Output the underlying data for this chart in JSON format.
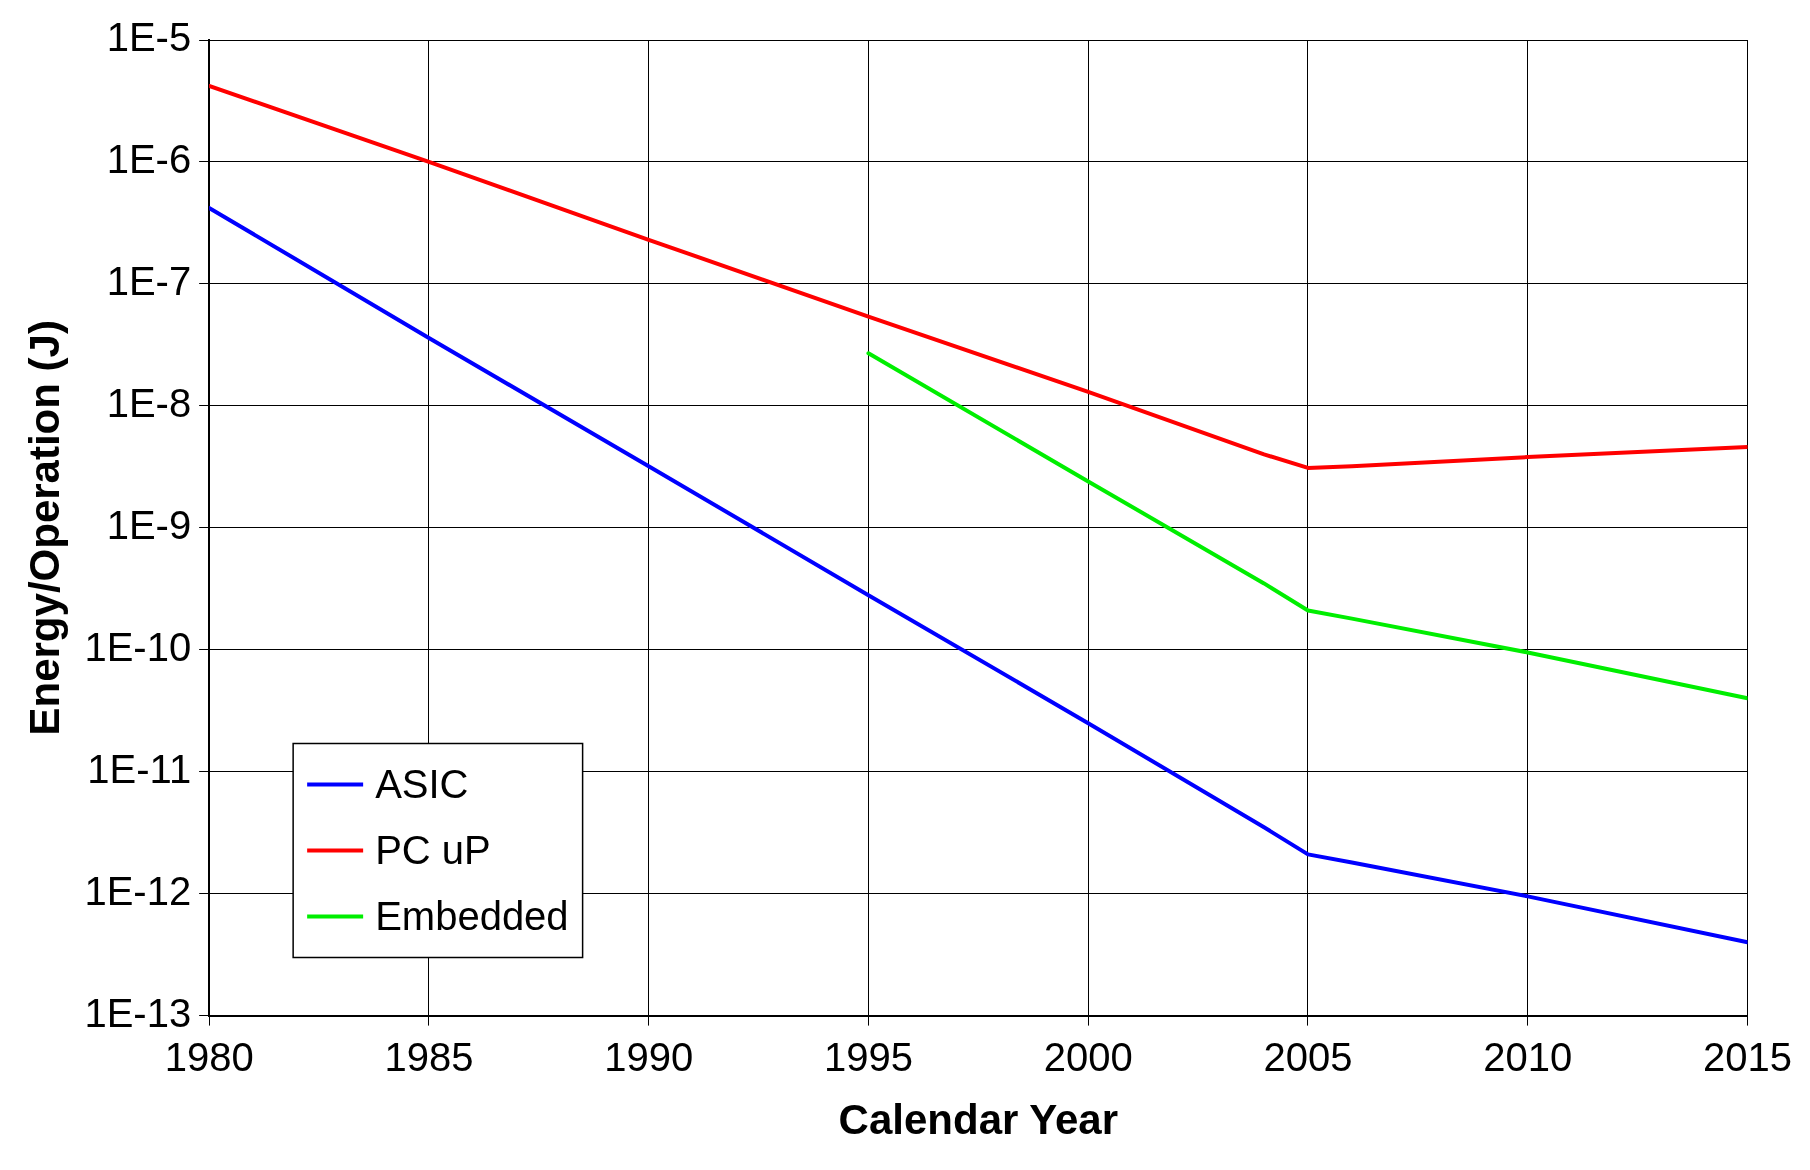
{
  "chart_data": {
    "type": "line",
    "xlabel": "Calendar Year",
    "ylabel": "Energy/Operation (J)",
    "xlim": [
      1980,
      2015
    ],
    "xticks": [
      1980,
      1985,
      1990,
      1995,
      2000,
      2005,
      2010,
      2015
    ],
    "ylim": [
      1e-13,
      1e-05
    ],
    "log": "y",
    "yticks": [
      {
        "value": 1e-13,
        "label": "1E-13"
      },
      {
        "value": 1e-12,
        "label": "1E-12"
      },
      {
        "value": 1e-11,
        "label": "1E-11"
      },
      {
        "value": 1e-10,
        "label": "1E-10"
      },
      {
        "value": 1e-09,
        "label": "1E-9"
      },
      {
        "value": 1e-08,
        "label": "1E-8"
      },
      {
        "value": 1e-07,
        "label": "1E-7"
      },
      {
        "value": 1e-06,
        "label": "1E-6"
      },
      {
        "value": 1e-05,
        "label": "1E-5"
      }
    ],
    "grid": true,
    "legend": "bottom left",
    "marker": "none",
    "line_style": "solid",
    "series": [
      {
        "name": "ASIC",
        "color": "#0000ff",
        "x": [
          1980,
          1985,
          1990,
          1995,
          2000,
          2004,
          2005,
          2006,
          2010,
          2015
        ],
        "values": [
          4.2e-07,
          3.6e-08,
          3.2e-09,
          2.8e-10,
          2.5e-11,
          3.5e-12,
          2.1e-12,
          1.8e-12,
          9.5e-13,
          4e-13
        ]
      },
      {
        "name": "PC uP",
        "color": "#ff0000",
        "x": [
          1980,
          1985,
          1990,
          1995,
          2000,
          2004,
          2005,
          2006,
          2010,
          2015
        ],
        "values": [
          4.2e-06,
          1e-06,
          2.3e-07,
          5.4e-08,
          1.3e-08,
          4e-09,
          3.1e-09,
          3.2e-09,
          3.8e-09,
          4.6e-09
        ]
      },
      {
        "name": "Embedded",
        "color": "#00ee00",
        "x": [
          1995,
          2000,
          2004,
          2005,
          2006,
          2010,
          2015
        ],
        "values": [
          2.7e-08,
          2.4e-09,
          3.5e-10,
          2.1e-10,
          1.8e-10,
          9.5e-11,
          4e-11
        ]
      }
    ]
  }
}
